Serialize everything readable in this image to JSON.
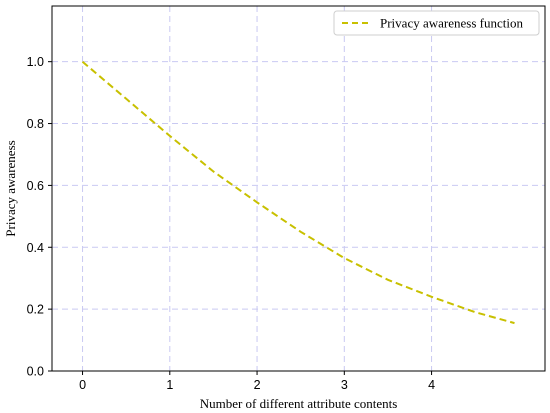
{
  "chart_data": {
    "type": "line",
    "xlabel": "Number of different attribute contents",
    "ylabel": "Privacy awareness",
    "xlim": [
      -0.35,
      5.3
    ],
    "ylim": [
      0.0,
      1.18
    ],
    "xticks": [
      0,
      1,
      2,
      3,
      4
    ],
    "yticks": [
      0.0,
      0.2,
      0.4,
      0.6,
      0.8,
      1.0
    ],
    "xtick_labels": [
      "0",
      "1",
      "2",
      "3",
      "4"
    ],
    "ytick_labels": [
      "0.0",
      "0.2",
      "0.4",
      "0.6",
      "0.8",
      "1.0"
    ],
    "grid": true,
    "legend_position": "top-right",
    "series": [
      {
        "name": "Privacy awareness function",
        "color": "#c8c000",
        "line_style": "dashed",
        "x": [
          0,
          0.5,
          1,
          1.5,
          2,
          2.5,
          3,
          3.5,
          4,
          4.5,
          4.95
        ],
        "y": [
          1.0,
          0.88,
          0.76,
          0.645,
          0.545,
          0.45,
          0.365,
          0.295,
          0.24,
          0.19,
          0.155
        ]
      }
    ]
  }
}
